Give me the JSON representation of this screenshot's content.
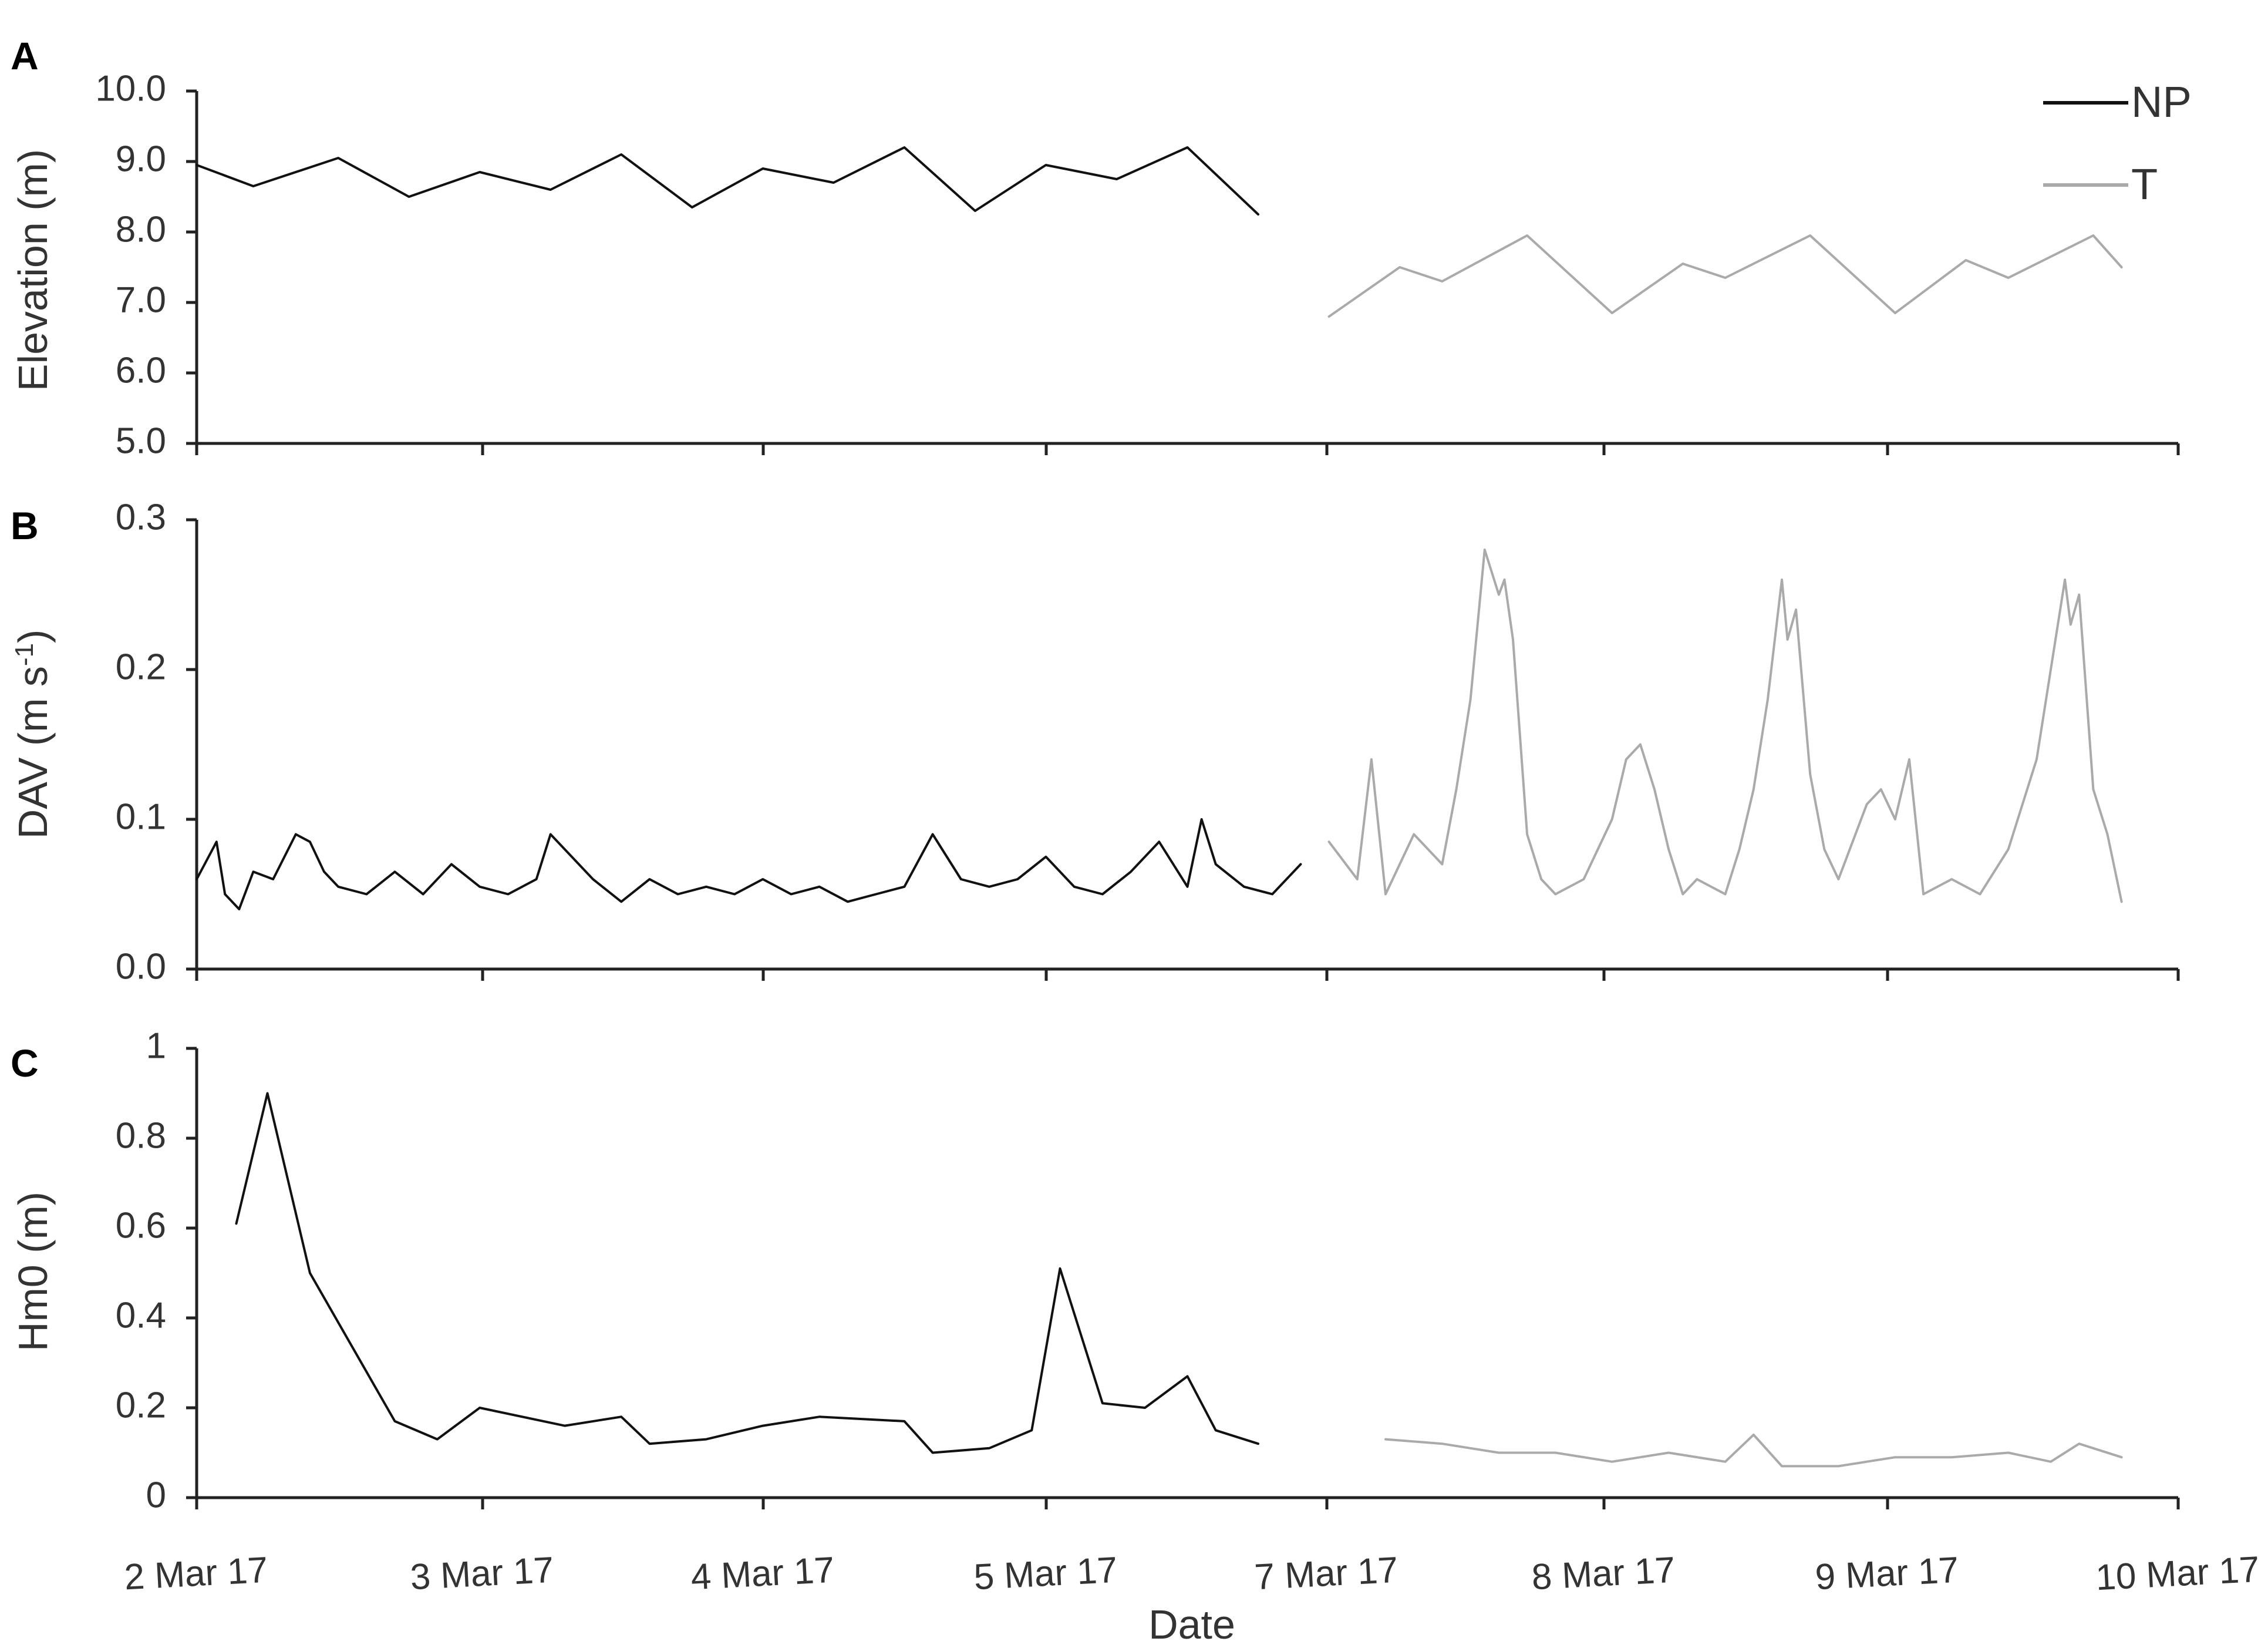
{
  "chart_data": [
    {
      "panel": "A",
      "type": "line",
      "ylabel": "Elevation (m)",
      "ylim": [
        5.0,
        10.0
      ],
      "yticks": [
        "5.0",
        "6.0",
        "7.0",
        "8.0",
        "9.0",
        "10.0"
      ],
      "xlim_days": [
        0,
        7
      ],
      "x_ticks": [
        "2 Mar 17",
        "3 Mar 17",
        "4 Mar 17",
        "5 Mar 17",
        "7 Mar 17",
        "8 Mar 17",
        "9 Mar 17",
        "10 Mar 17"
      ],
      "legend": {
        "position": "top-right",
        "entries": [
          {
            "name": "NP",
            "color": "#111111"
          },
          {
            "name": "T",
            "color": "#aaaaaa"
          }
        ]
      },
      "series": [
        {
          "name": "NP",
          "color": "#111111",
          "x": [
            0,
            0.2,
            0.5,
            0.75,
            1,
            1.25,
            1.5,
            1.75,
            2,
            2.25,
            2.5,
            2.75,
            3,
            3.25,
            3.5,
            3.75
          ],
          "y": [
            8.95,
            8.65,
            9.05,
            8.5,
            8.85,
            8.6,
            9.1,
            8.35,
            8.9,
            8.7,
            9.2,
            8.3,
            8.95,
            8.75,
            9.2,
            8.25
          ]
        },
        {
          "name": "T",
          "color": "#aaaaaa",
          "x": [
            4,
            4.25,
            4.4,
            4.7,
            5,
            5.25,
            5.4,
            5.7,
            6,
            6.25,
            6.4,
            6.7,
            6.8
          ],
          "y": [
            6.8,
            7.5,
            7.3,
            7.95,
            6.85,
            7.55,
            7.35,
            7.95,
            6.85,
            7.6,
            7.35,
            7.95,
            7.5
          ]
        }
      ]
    },
    {
      "panel": "B",
      "type": "line",
      "ylabel": "DAV (m s",
      "ylabel_sup": "-1",
      "ylabel_end": ")",
      "ylim": [
        0.0,
        0.3
      ],
      "yticks": [
        "0.0",
        "0.1",
        "0.2",
        "0.3"
      ],
      "xlim_days": [
        0,
        7
      ],
      "series": [
        {
          "name": "NP",
          "color": "#111111",
          "x": [
            0,
            0.07,
            0.1,
            0.15,
            0.2,
            0.27,
            0.35,
            0.4,
            0.45,
            0.5,
            0.6,
            0.7,
            0.8,
            0.9,
            1,
            1.1,
            1.2,
            1.25,
            1.3,
            1.4,
            1.5,
            1.6,
            1.7,
            1.8,
            1.9,
            2,
            2.1,
            2.2,
            2.3,
            2.4,
            2.5,
            2.6,
            2.7,
            2.8,
            2.9,
            3,
            3.1,
            3.2,
            3.3,
            3.4,
            3.5,
            3.55,
            3.6,
            3.7,
            3.8,
            3.9
          ],
          "y": [
            0.06,
            0.085,
            0.05,
            0.04,
            0.065,
            0.06,
            0.09,
            0.085,
            0.065,
            0.055,
            0.05,
            0.065,
            0.05,
            0.07,
            0.055,
            0.05,
            0.06,
            0.09,
            0.08,
            0.06,
            0.045,
            0.06,
            0.05,
            0.055,
            0.05,
            0.06,
            0.05,
            0.055,
            0.045,
            0.05,
            0.055,
            0.09,
            0.06,
            0.055,
            0.06,
            0.075,
            0.055,
            0.05,
            0.065,
            0.085,
            0.055,
            0.1,
            0.07,
            0.055,
            0.05,
            0.07
          ]
        },
        {
          "name": "T",
          "color": "#aaaaaa",
          "x": [
            4,
            4.1,
            4.15,
            4.2,
            4.3,
            4.4,
            4.45,
            4.5,
            4.55,
            4.6,
            4.62,
            4.65,
            4.7,
            4.75,
            4.8,
            4.9,
            5,
            5.05,
            5.1,
            5.15,
            5.2,
            5.25,
            5.3,
            5.4,
            5.45,
            5.5,
            5.55,
            5.6,
            5.62,
            5.65,
            5.7,
            5.75,
            5.8,
            5.9,
            5.95,
            6,
            6.05,
            6.1,
            6.2,
            6.3,
            6.4,
            6.5,
            6.55,
            6.6,
            6.62,
            6.65,
            6.7,
            6.75,
            6.8
          ],
          "y": [
            0.085,
            0.06,
            0.14,
            0.05,
            0.09,
            0.07,
            0.12,
            0.18,
            0.28,
            0.25,
            0.26,
            0.22,
            0.09,
            0.06,
            0.05,
            0.06,
            0.1,
            0.14,
            0.15,
            0.12,
            0.08,
            0.05,
            0.06,
            0.05,
            0.08,
            0.12,
            0.18,
            0.26,
            0.22,
            0.24,
            0.13,
            0.08,
            0.06,
            0.11,
            0.12,
            0.1,
            0.14,
            0.05,
            0.06,
            0.05,
            0.08,
            0.14,
            0.2,
            0.26,
            0.23,
            0.25,
            0.12,
            0.09,
            0.045
          ]
        }
      ]
    },
    {
      "panel": "C",
      "type": "line",
      "ylabel": "Hm0 (m)",
      "ylim": [
        0,
        1
      ],
      "yticks": [
        "0",
        "0.2",
        "0.4",
        "0.6",
        "0.8",
        "1"
      ],
      "xlim_days": [
        0,
        7
      ],
      "xlabel": "Date",
      "series": [
        {
          "name": "NP",
          "color": "#111111",
          "x": [
            0.14,
            0.25,
            0.4,
            0.6,
            0.7,
            0.85,
            1,
            1.3,
            1.5,
            1.6,
            1.8,
            2,
            2.2,
            2.5,
            2.6,
            2.8,
            2.95,
            3.05,
            3.2,
            3.35,
            3.5,
            3.6,
            3.75
          ],
          "y": [
            0.61,
            0.9,
            0.5,
            0.28,
            0.17,
            0.13,
            0.2,
            0.16,
            0.18,
            0.12,
            0.13,
            0.16,
            0.18,
            0.17,
            0.1,
            0.11,
            0.15,
            0.51,
            0.21,
            0.2,
            0.27,
            0.15,
            0.12
          ]
        },
        {
          "name": "T",
          "color": "#aaaaaa",
          "x": [
            4.2,
            4.4,
            4.6,
            4.8,
            5,
            5.2,
            5.4,
            5.5,
            5.6,
            5.8,
            6,
            6.2,
            6.4,
            6.55,
            6.65,
            6.8
          ],
          "y": [
            0.13,
            0.12,
            0.1,
            0.1,
            0.08,
            0.1,
            0.08,
            0.14,
            0.07,
            0.07,
            0.09,
            0.09,
            0.1,
            0.08,
            0.12,
            0.09
          ]
        }
      ]
    }
  ]
}
